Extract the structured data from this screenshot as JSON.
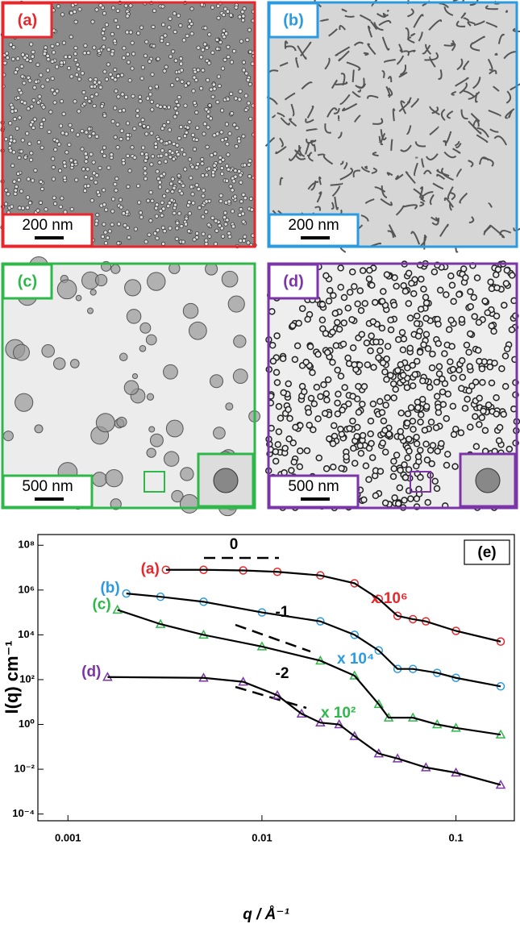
{
  "panels": [
    {
      "label": "(a)",
      "scale_bar": "200 nm",
      "color": "#e8262b"
    },
    {
      "label": "(b)",
      "scale_bar": "200 nm",
      "color": "#2a9be0"
    },
    {
      "label": "(c)",
      "scale_bar": "500 nm",
      "color": "#2fb84a"
    },
    {
      "label": "(d)",
      "scale_bar": "500 nm",
      "color": "#7b35a8"
    }
  ],
  "chart_data": {
    "type": "line",
    "panel_label": "(e)",
    "x_label": "q / Å⁻¹",
    "y_label": "I(q) cm⁻¹",
    "log_x": true,
    "log_y": true,
    "xlim": [
      0.0007,
      0.2
    ],
    "xticks": [
      0.001,
      0.01,
      0.1
    ],
    "ylim": [
      5e-05,
      300000000
    ],
    "yticks": [
      {
        "value": 0.0001,
        "label": "10⁻⁴"
      },
      {
        "value": 0.01,
        "label": "10⁻²"
      },
      {
        "value": 1,
        "label": "10⁰"
      },
      {
        "value": 100,
        "label": "10²"
      },
      {
        "value": 10000,
        "label": "10⁴"
      },
      {
        "value": 1000000,
        "label": "10⁶"
      },
      {
        "value": 100000000,
        "label": "10⁸"
      }
    ],
    "series": [
      {
        "name": "(a)",
        "color": "#e8262b",
        "marker": "circle",
        "x": [
          0.0032,
          0.005,
          0.008,
          0.012,
          0.02,
          0.03,
          0.04,
          0.05,
          0.06,
          0.07,
          0.1,
          0.17
        ],
        "values": [
          8000000,
          8000000,
          7500000,
          6500000,
          4500000,
          2000000,
          400000,
          70000,
          50000,
          40000,
          15000,
          5000
        ]
      },
      {
        "name": "(b)",
        "color": "#2a9be0",
        "marker": "circle",
        "x": [
          0.002,
          0.003,
          0.005,
          0.01,
          0.02,
          0.03,
          0.04,
          0.05,
          0.06,
          0.08,
          0.1,
          0.17
        ],
        "values": [
          700000,
          500000,
          300000,
          100000,
          40000,
          10000,
          2000,
          300,
          300,
          200,
          120,
          50
        ]
      },
      {
        "name": "(c)",
        "color": "#2fb84a",
        "marker": "triangle",
        "x": [
          0.0018,
          0.003,
          0.005,
          0.01,
          0.02,
          0.03,
          0.04,
          0.045,
          0.06,
          0.08,
          0.1,
          0.17
        ],
        "values": [
          130000,
          30000,
          10000,
          3000,
          700,
          150,
          8,
          2,
          2,
          1,
          0.7,
          0.35
        ]
      },
      {
        "name": "(d)",
        "color": "#7b35a8",
        "marker": "triangle",
        "x": [
          0.0016,
          0.005,
          0.008,
          0.012,
          0.016,
          0.02,
          0.025,
          0.03,
          0.04,
          0.05,
          0.07,
          0.1,
          0.17
        ],
        "values": [
          130,
          120,
          80,
          20,
          3,
          1.2,
          1,
          0.3,
          0.05,
          0.03,
          0.012,
          0.007,
          0.002
        ]
      }
    ],
    "annotations": [
      {
        "text": "0"
      },
      {
        "text": "-1"
      },
      {
        "text": "-2"
      },
      {
        "text": "x 10⁶",
        "color": "#e8262b"
      },
      {
        "text": "x 10⁴",
        "color": "#2a9be0"
      },
      {
        "text": "x 10²",
        "color": "#2fb84a"
      }
    ]
  }
}
